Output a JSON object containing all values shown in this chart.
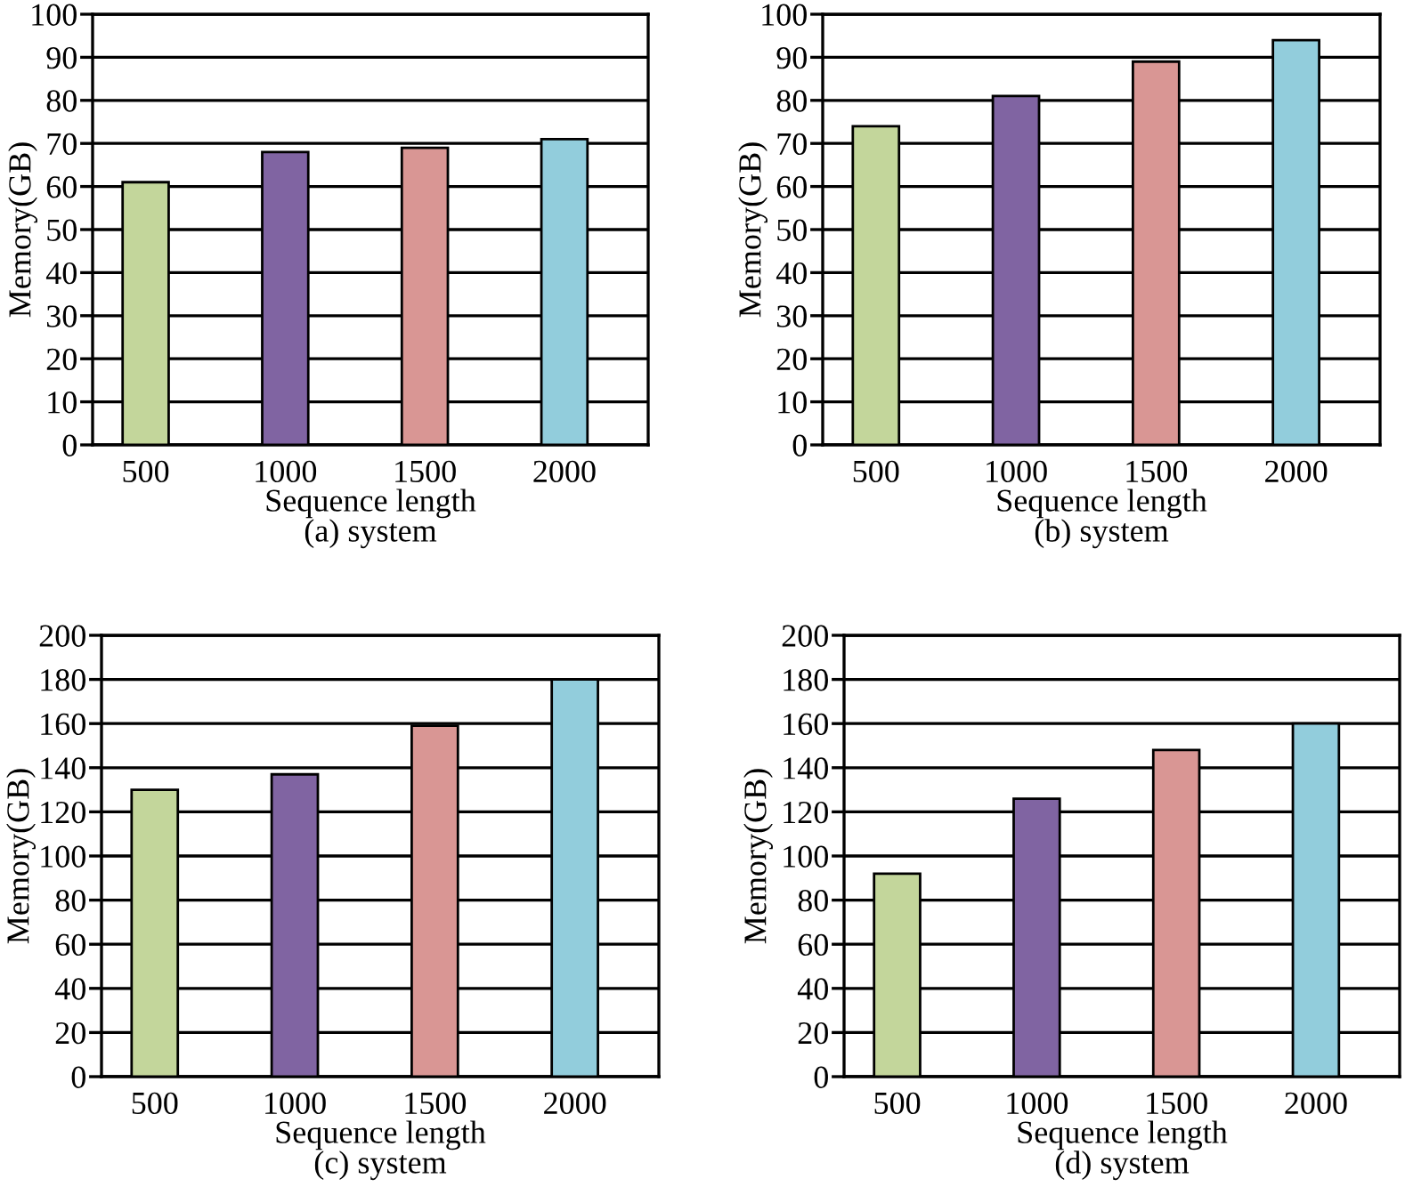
{
  "chart_data": [
    {
      "type": "bar",
      "title": "(a) system",
      "xlabel": "Sequence length",
      "ylabel": "Memory(GB)",
      "categories": [
        "500",
        "1000",
        "1500",
        "2000"
      ],
      "values": [
        61,
        68,
        69,
        71
      ],
      "colors": [
        "#c3d69b",
        "#8064a2",
        "#d99694",
        "#92cddc"
      ],
      "ylim": [
        0,
        100
      ],
      "yticks": [
        0,
        10,
        20,
        30,
        40,
        50,
        60,
        70,
        80,
        90,
        100
      ],
      "grid": "y"
    },
    {
      "type": "bar",
      "title": "(b) system",
      "xlabel": "Sequence length",
      "ylabel": "Memory(GB)",
      "categories": [
        "500",
        "1000",
        "1500",
        "2000"
      ],
      "values": [
        74,
        81,
        89,
        94
      ],
      "colors": [
        "#c3d69b",
        "#8064a2",
        "#d99694",
        "#92cddc"
      ],
      "ylim": [
        0,
        100
      ],
      "yticks": [
        0,
        10,
        20,
        30,
        40,
        50,
        60,
        70,
        80,
        90,
        100
      ],
      "grid": "y"
    },
    {
      "type": "bar",
      "title": "(c) system",
      "xlabel": "Sequence length",
      "ylabel": "Memory(GB)",
      "categories": [
        "500",
        "1000",
        "1500",
        "2000"
      ],
      "values": [
        130,
        137,
        159,
        180
      ],
      "colors": [
        "#c3d69b",
        "#8064a2",
        "#d99694",
        "#92cddc"
      ],
      "ylim": [
        0,
        200
      ],
      "yticks": [
        0,
        20,
        40,
        60,
        80,
        100,
        120,
        140,
        160,
        180,
        200
      ],
      "grid": "y"
    },
    {
      "type": "bar",
      "title": "(d) system",
      "xlabel": "Sequence length",
      "ylabel": "Memory(GB)",
      "categories": [
        "500",
        "1000",
        "1500",
        "2000"
      ],
      "values": [
        92,
        126,
        148,
        160
      ],
      "colors": [
        "#c3d69b",
        "#8064a2",
        "#d99694",
        "#92cddc"
      ],
      "ylim": [
        0,
        200
      ],
      "yticks": [
        0,
        20,
        40,
        60,
        80,
        100,
        120,
        140,
        160,
        180,
        200
      ],
      "grid": "y"
    }
  ]
}
